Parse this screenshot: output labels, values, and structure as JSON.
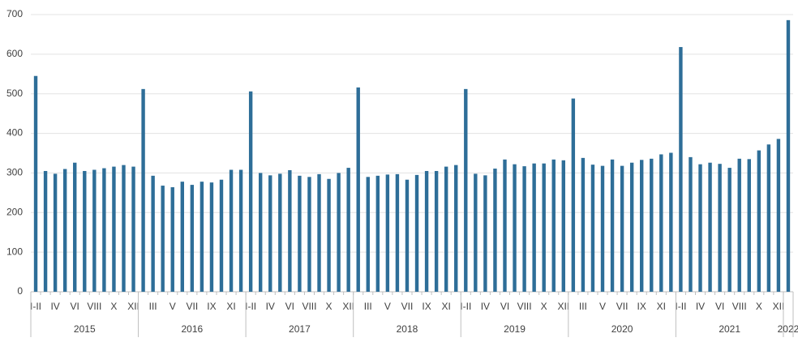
{
  "chart_data": {
    "type": "bar",
    "categories": [
      "I-II",
      null,
      "IV",
      null,
      "VI",
      null,
      "VIII",
      null,
      "X",
      null,
      "XII",
      null,
      "III",
      null,
      "V",
      null,
      "VII",
      null,
      "IX",
      null,
      "XI",
      null,
      "I-II",
      null,
      "IV",
      null,
      "VI",
      null,
      "VIII",
      null,
      "X",
      null,
      "XII",
      null,
      "III",
      null,
      "V",
      null,
      "VII",
      null,
      "IX",
      null,
      "XI",
      null,
      "I-II",
      null,
      "IV",
      null,
      "VI",
      null,
      "VIII",
      null,
      "X",
      null,
      "XII",
      null,
      "III",
      null,
      "V",
      null,
      "VII",
      null,
      "IX",
      null,
      "XI",
      null,
      "I-II",
      null,
      "IV",
      null,
      "VI",
      null,
      "VIII",
      null,
      "X",
      null,
      "XII",
      null
    ],
    "groups": [
      {
        "label": "2015",
        "size": 11
      },
      {
        "label": "2016",
        "size": 11
      },
      {
        "label": "2017",
        "size": 11
      },
      {
        "label": "2018",
        "size": 11
      },
      {
        "label": "2019",
        "size": 11
      },
      {
        "label": "2020",
        "size": 11
      },
      {
        "label": "2021",
        "size": 11
      },
      {
        "label": "2022",
        "size": 1
      }
    ],
    "values": [
      545,
      305,
      298,
      310,
      326,
      305,
      308,
      312,
      316,
      320,
      316,
      512,
      293,
      268,
      264,
      278,
      270,
      278,
      276,
      283,
      308,
      308,
      506,
      300,
      294,
      298,
      307,
      293,
      290,
      297,
      285,
      300,
      313,
      516,
      290,
      293,
      296,
      297,
      283,
      295,
      305,
      305,
      316,
      320,
      512,
      298,
      294,
      311,
      334,
      322,
      317,
      324,
      324,
      334,
      332,
      488,
      338,
      321,
      318,
      334,
      318,
      326,
      333,
      336,
      347,
      351,
      618,
      340,
      322,
      326,
      323,
      313,
      336,
      335,
      357,
      372,
      386,
      686
    ],
    "color": "#2e6e98",
    "ylim": [
      0,
      700
    ],
    "yticks": [
      0,
      100,
      200,
      300,
      400,
      500,
      600,
      700
    ],
    "grid": true
  }
}
